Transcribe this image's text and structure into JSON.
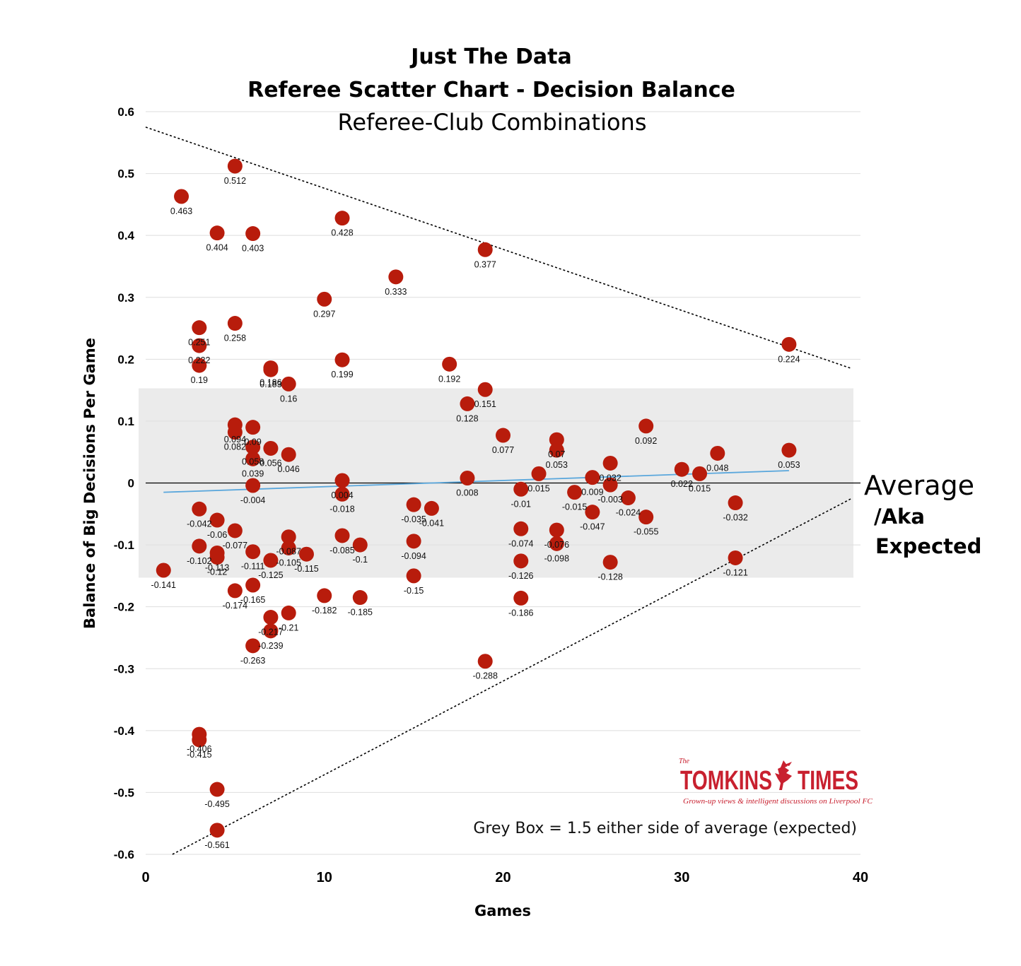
{
  "chart_data": {
    "type": "scatter",
    "title": "Just The Data",
    "subtitle": "Referee Scatter Chart - Decision Balance",
    "subtitle2": "Referee-Club Combinations",
    "xlabel": "Games",
    "ylabel": "Balance of Big Decisions Per Game",
    "xlim": [
      0,
      40
    ],
    "ylim": [
      -0.6,
      0.6
    ],
    "xticks": [
      0,
      10,
      20,
      30,
      40
    ],
    "yticks": [
      0.6,
      0.5,
      0.4,
      0.3,
      0.2,
      0.1,
      0,
      -0.1,
      -0.2,
      -0.3,
      -0.4,
      -0.5,
      -0.6
    ],
    "ytick_labels": [
      "0.6",
      "0.5",
      "0.4",
      "0.3",
      "0.2",
      "0.1",
      "0",
      "-0.1",
      "-0.2",
      "-0.3",
      "-0.4",
      "-0.5",
      "-0.6"
    ],
    "grid": true,
    "marker_color": "#b81c0c",
    "trend_color": "#5aa7dc",
    "band_color": "#ebebeb",
    "band_range": [
      -0.153,
      0.153
    ],
    "upper_bound_line": [
      [
        0,
        0.575
      ],
      [
        39.5,
        0.185
      ]
    ],
    "lower_bound_line": [
      [
        1.5,
        -0.6
      ],
      [
        39.5,
        -0.025
      ]
    ],
    "trend_line": [
      [
        1,
        -0.015
      ],
      [
        36,
        0.02
      ]
    ],
    "points": [
      {
        "x": 2,
        "y": 0.463,
        "label": "0.463"
      },
      {
        "x": 5,
        "y": 0.512,
        "label": "0.512"
      },
      {
        "x": 4,
        "y": 0.404,
        "label": "0.404"
      },
      {
        "x": 6,
        "y": 0.403,
        "label": "0.403"
      },
      {
        "x": 11,
        "y": 0.428,
        "label": "0.428"
      },
      {
        "x": 19,
        "y": 0.377,
        "label": "0.377"
      },
      {
        "x": 14,
        "y": 0.333,
        "label": "0.333"
      },
      {
        "x": 10,
        "y": 0.297,
        "label": "0.297"
      },
      {
        "x": 3,
        "y": 0.251,
        "label": "0.251"
      },
      {
        "x": 5,
        "y": 0.258,
        "label": "0.258"
      },
      {
        "x": 3,
        "y": 0.222,
        "label": "0.222"
      },
      {
        "x": 3,
        "y": 0.19,
        "label": "0.19"
      },
      {
        "x": 7,
        "y": 0.186,
        "label": "0.186"
      },
      {
        "x": 7,
        "y": 0.183,
        "label": "0.183"
      },
      {
        "x": 8,
        "y": 0.16,
        "label": "0.16"
      },
      {
        "x": 11,
        "y": 0.199,
        "label": "0.199"
      },
      {
        "x": 17,
        "y": 0.192,
        "label": "0.192"
      },
      {
        "x": 36,
        "y": 0.224,
        "label": "0.224"
      },
      {
        "x": 19,
        "y": 0.151,
        "label": "0.151"
      },
      {
        "x": 18,
        "y": 0.128,
        "label": "0.128"
      },
      {
        "x": 5,
        "y": 0.094,
        "label": "0.094"
      },
      {
        "x": 6,
        "y": 0.09,
        "label": "0.09"
      },
      {
        "x": 5,
        "y": 0.082,
        "label": "0.082"
      },
      {
        "x": 6,
        "y": 0.058,
        "label": "0.058"
      },
      {
        "x": 7,
        "y": 0.056,
        "label": "0.056"
      },
      {
        "x": 6,
        "y": 0.039,
        "label": "0.039"
      },
      {
        "x": 8,
        "y": 0.046,
        "label": "0.046"
      },
      {
        "x": 20,
        "y": 0.077,
        "label": "0.077"
      },
      {
        "x": 23,
        "y": 0.07,
        "label": "0.07"
      },
      {
        "x": 23,
        "y": 0.053,
        "label": "0.053"
      },
      {
        "x": 28,
        "y": 0.092,
        "label": "0.092"
      },
      {
        "x": 32,
        "y": 0.048,
        "label": "0.048"
      },
      {
        "x": 36,
        "y": 0.053,
        "label": "0.053"
      },
      {
        "x": 26,
        "y": 0.032,
        "label": "0.032"
      },
      {
        "x": 30,
        "y": 0.022,
        "label": "0.022"
      },
      {
        "x": 31,
        "y": 0.015,
        "label": "0.015"
      },
      {
        "x": 22,
        "y": 0.015,
        "label": "0.015"
      },
      {
        "x": 25,
        "y": 0.009,
        "label": "0.009"
      },
      {
        "x": 18,
        "y": 0.008,
        "label": "0.008"
      },
      {
        "x": 11,
        "y": 0.004,
        "label": "0.004"
      },
      {
        "x": 6,
        "y": -0.004,
        "label": "-0.004"
      },
      {
        "x": 26,
        "y": -0.003,
        "label": "-0.003"
      },
      {
        "x": 21,
        "y": -0.01,
        "label": "-0.01"
      },
      {
        "x": 24,
        "y": -0.015,
        "label": "-0.015"
      },
      {
        "x": 11,
        "y": -0.018,
        "label": "-0.018"
      },
      {
        "x": 27,
        "y": -0.024,
        "label": "-0.024"
      },
      {
        "x": 33,
        "y": -0.032,
        "label": "-0.032"
      },
      {
        "x": 15,
        "y": -0.035,
        "label": "-0.035"
      },
      {
        "x": 16,
        "y": -0.041,
        "label": "-0.041"
      },
      {
        "x": 3,
        "y": -0.042,
        "label": "-0.042"
      },
      {
        "x": 25,
        "y": -0.047,
        "label": "-0.047"
      },
      {
        "x": 28,
        "y": -0.055,
        "label": "-0.055"
      },
      {
        "x": 4,
        "y": -0.06,
        "label": "-0.06"
      },
      {
        "x": 21,
        "y": -0.074,
        "label": "-0.074"
      },
      {
        "x": 23,
        "y": -0.076,
        "label": "-0.076"
      },
      {
        "x": 5,
        "y": -0.077,
        "label": "-0.077"
      },
      {
        "x": 11,
        "y": -0.085,
        "label": "-0.085"
      },
      {
        "x": 8,
        "y": -0.087,
        "label": "-0.087"
      },
      {
        "x": 15,
        "y": -0.094,
        "label": "-0.094"
      },
      {
        "x": 23,
        "y": -0.098,
        "label": "-0.098"
      },
      {
        "x": 12,
        "y": -0.1,
        "label": "-0.1"
      },
      {
        "x": 3,
        "y": -0.102,
        "label": "-0.102"
      },
      {
        "x": 8,
        "y": -0.105,
        "label": "-0.105"
      },
      {
        "x": 6,
        "y": -0.111,
        "label": "-0.111"
      },
      {
        "x": 4,
        "y": -0.113,
        "label": "-0.113"
      },
      {
        "x": 9,
        "y": -0.115,
        "label": "-0.115"
      },
      {
        "x": 4,
        "y": -0.12,
        "label": "-0.12"
      },
      {
        "x": 33,
        "y": -0.121,
        "label": "-0.121"
      },
      {
        "x": 7,
        "y": -0.125,
        "label": "-0.125"
      },
      {
        "x": 21,
        "y": -0.126,
        "label": "-0.126"
      },
      {
        "x": 26,
        "y": -0.128,
        "label": "-0.128"
      },
      {
        "x": 1,
        "y": -0.141,
        "label": "-0.141"
      },
      {
        "x": 15,
        "y": -0.15,
        "label": "-0.15"
      },
      {
        "x": 6,
        "y": -0.165,
        "label": "-0.165"
      },
      {
        "x": 5,
        "y": -0.174,
        "label": "-0.174"
      },
      {
        "x": 10,
        "y": -0.182,
        "label": "-0.182"
      },
      {
        "x": 12,
        "y": -0.185,
        "label": "-0.185"
      },
      {
        "x": 21,
        "y": -0.186,
        "label": "-0.186"
      },
      {
        "x": 8,
        "y": -0.21,
        "label": "-0.21"
      },
      {
        "x": 7,
        "y": -0.217,
        "label": "-0.217"
      },
      {
        "x": 7,
        "y": -0.239,
        "label": "-0.239"
      },
      {
        "x": 6,
        "y": -0.263,
        "label": "-0.263"
      },
      {
        "x": 19,
        "y": -0.288,
        "label": "-0.288"
      },
      {
        "x": 3,
        "y": -0.406,
        "label": "-0.406"
      },
      {
        "x": 3,
        "y": -0.415,
        "label": "-0.415"
      },
      {
        "x": 4,
        "y": -0.495,
        "label": "-0.495"
      },
      {
        "x": 4,
        "y": -0.561,
        "label": "-0.561"
      }
    ]
  },
  "annotations": {
    "average": "Average",
    "aka": "/Aka",
    "expected": "Expected",
    "grey_box_note": "Grey Box = 1.5 either side of average (expected)"
  },
  "logo": {
    "the": "The",
    "name_left": "TOMKINS",
    "name_right": "TIMES",
    "tagline": "Grown-up views & intelligent discussions on Liverpool FC",
    "color": "#c8202f"
  }
}
